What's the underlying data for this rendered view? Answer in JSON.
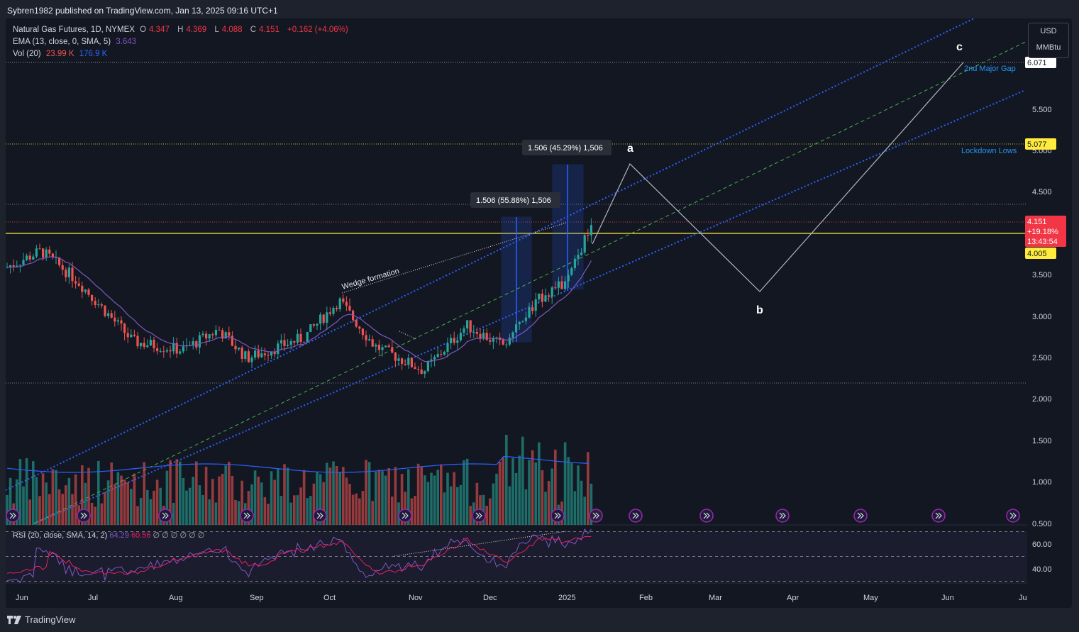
{
  "header": {
    "published": "Sybren1982 published on TradingView.com, Jan 13, 2025 09:16 UTC+1"
  },
  "legend": {
    "symbol": "Natural Gas Futures, 1D, NYMEX",
    "o_label": "O",
    "o": "4.347",
    "h_label": "H",
    "h": "4.369",
    "l_label": "L",
    "l": "4.088",
    "c_label": "C",
    "c": "4.151",
    "change": "+0.162 (+4.06%)",
    "ema_label": "EMA (13, close, 0, SMA, 5)",
    "ema": "3.643",
    "vol_label": "Vol (20)",
    "vol_a": "23.99 K",
    "vol_b": "176.9 K"
  },
  "rsi": {
    "label": "RSI (20, close, SMA, 14, 2)",
    "v1": "64.29",
    "v2": "60.56",
    "na": "∅ ∅ ∅ ∅ ∅ ∅"
  },
  "units": {
    "currency": "USD",
    "unit": "MMBtu"
  },
  "price_axis": [
    "5.500",
    "5.000",
    "4.500",
    "3.500",
    "3.000",
    "2.500",
    "2.000",
    "1.500",
    "1.000",
    "0.500"
  ],
  "rsi_axis": [
    "60.00",
    "40.00"
  ],
  "time_axis": [
    "Jun",
    "Jul",
    "Aug",
    "Sep",
    "Oct",
    "Nov",
    "Dec",
    "2025",
    "Feb",
    "Mar",
    "Apr",
    "May",
    "Jun",
    "Ju"
  ],
  "labels": {
    "price_6071": "6.071",
    "price_5077": "5.077",
    "price_4005": "4.005",
    "last_price": "4.151",
    "last_change": "+19.18%",
    "countdown": "13:43:54",
    "gap2": "2nd Major Gap",
    "lockdown": "Lockdown Lows",
    "measure1": "1.506 (45.29%) 1,506",
    "measure2": "1.506 (55.88%) 1,506",
    "wedge": "Wedge formation",
    "wave_a": "a",
    "wave_b": "b",
    "wave_c": "c"
  },
  "colors": {
    "bg": "#131722",
    "up": "#26a69a",
    "down": "#ef5350",
    "ema": "#7e57c2",
    "trend": "#2962ff",
    "yellow": "#ffeb3b",
    "rsi": "#7e57c2",
    "rsi_ma": "#e91e63"
  },
  "footer": {
    "brand": "TradingView"
  }
}
